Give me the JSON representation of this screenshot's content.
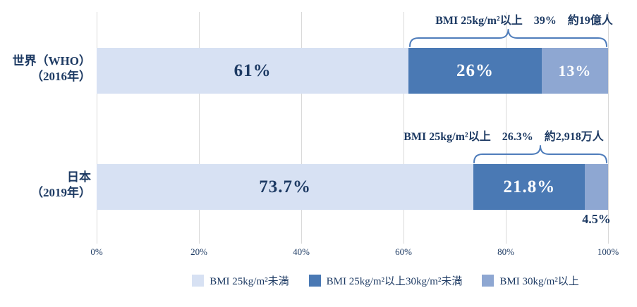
{
  "chart_data": {
    "type": "bar",
    "orientation": "horizontal",
    "stacked": true,
    "xlim": [
      0,
      100
    ],
    "grid": true,
    "x_ticks": [
      "0%",
      "20%",
      "40%",
      "60%",
      "80%",
      "100%"
    ],
    "colors": {
      "bmi_under_25": "#d7e1f3",
      "bmi_25_to_30": "#4a79b4",
      "bmi_over_30": "#8ea7d2",
      "text_navy": "#1d3a63",
      "brace_blue": "#4f7dbb"
    },
    "series_names": [
      "BMI 25kg/m²未満",
      "BMI 25kg/m²以上30kg/m²未満",
      "BMI 30kg/m²以上"
    ],
    "rows": [
      {
        "label_line1": "世界（WHO）",
        "label_line2": "（2016年）",
        "annotation": "BMI 25kg/m²以上　39%　約19億人",
        "segments": [
          {
            "series": "BMI 25kg/m²未満",
            "value": 61,
            "label": "61%"
          },
          {
            "series": "BMI 25kg/m²以上30kg/m²未満",
            "value": 26,
            "label": "26%"
          },
          {
            "series": "BMI 30kg/m²以上",
            "value": 13,
            "label": "13%"
          }
        ]
      },
      {
        "label_line1": "日本",
        "label_line2": "（2019年）",
        "annotation": "BMI 25kg/m²以上　26.3%　約2,918万人",
        "segments": [
          {
            "series": "BMI 25kg/m²未満",
            "value": 73.7,
            "label": "73.7%"
          },
          {
            "series": "BMI 25kg/m²以上30kg/m²未満",
            "value": 21.8,
            "label": "21.8%"
          },
          {
            "series": "BMI 30kg/m²以上",
            "value": 4.5,
            "label": "4.5%",
            "label_outside": true
          }
        ]
      }
    ],
    "legend": [
      {
        "label": "BMI 25kg/m²未満",
        "color": "#d7e1f3"
      },
      {
        "label": "BMI 25kg/m²以上30kg/m²未満",
        "color": "#4a79b4"
      },
      {
        "label": "BMI 30kg/m²以上",
        "color": "#8ea7d2"
      }
    ]
  }
}
